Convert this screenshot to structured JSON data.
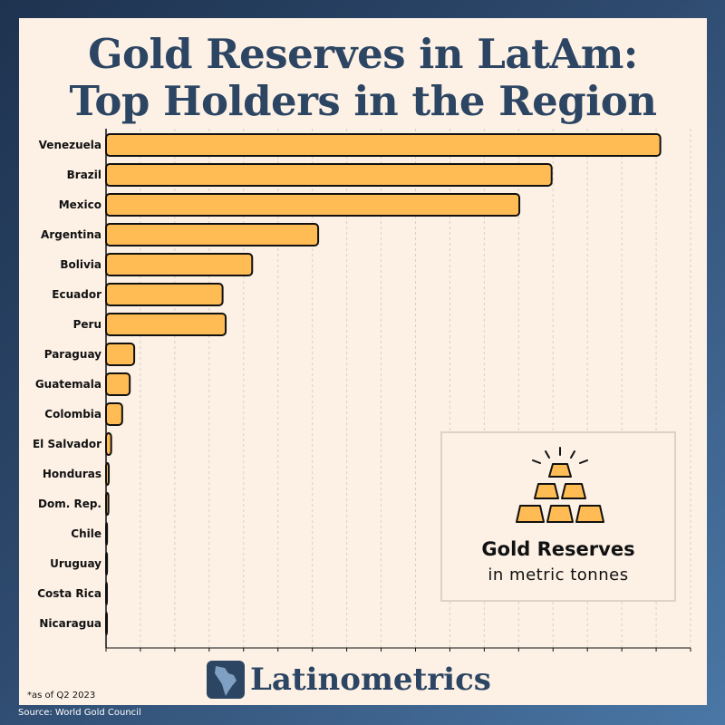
{
  "title_line1": "Gold Reserves in LatAm:",
  "title_line2": "Top Holders in the Region",
  "legend": {
    "title": "Gold Reserves",
    "subtitle": "in metric tonnes"
  },
  "brand": "Latinometrics",
  "footnote": "*as of Q2 2023",
  "source": "Source: World Gold Council",
  "colors": {
    "bar": "#ffbc54",
    "title": "#2c4563",
    "card": "#fdf1e6"
  },
  "chart_data": {
    "type": "bar",
    "orientation": "horizontal",
    "categories": [
      "Venezuela",
      "Brazil",
      "Mexico",
      "Argentina",
      "Bolivia",
      "Ecuador",
      "Peru",
      "Paraguay",
      "Guatemala",
      "Colombia",
      "El Salvador",
      "Honduras",
      "Dom. Rep.",
      "Chile",
      "Uruguay",
      "Costa Rica",
      "Nicaragua"
    ],
    "values": [
      161.2,
      129.6,
      120.2,
      61.7,
      42.5,
      33.9,
      34.8,
      8.2,
      6.9,
      4.7,
      1.5,
      0.8,
      0.7,
      0.3,
      0.3,
      0.0,
      0.0
    ],
    "xlim": [
      0,
      170
    ],
    "xticks": [
      0,
      10,
      20,
      30,
      40,
      50,
      60,
      70,
      80,
      90,
      100,
      110,
      120,
      130,
      140,
      150,
      160,
      170
    ],
    "grid": "vertical dashed"
  }
}
